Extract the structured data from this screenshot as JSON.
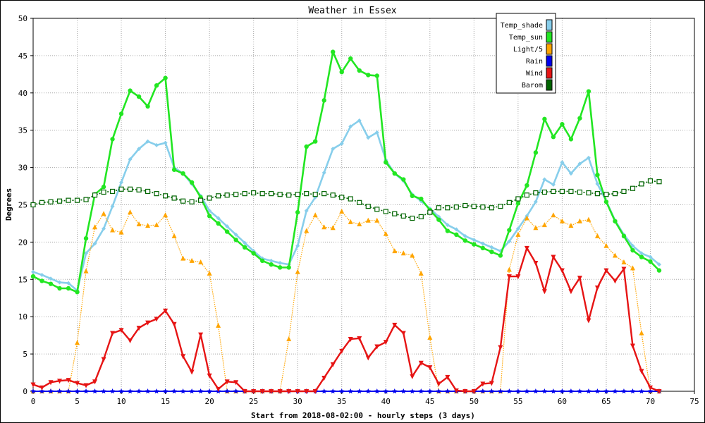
{
  "chart_data": {
    "type": "line",
    "title": "Weather in Essex",
    "xlabel": "Start from 2018-08-02:00 - hourly steps (3 days)",
    "ylabel": "Degrees",
    "xlim": [
      0,
      75
    ],
    "ylim": [
      0,
      50
    ],
    "xticks": [
      0,
      5,
      10,
      15,
      20,
      25,
      30,
      35,
      40,
      45,
      50,
      55,
      60,
      65,
      70,
      75
    ],
    "yticks": [
      0,
      5,
      10,
      15,
      20,
      25,
      30,
      35,
      40,
      45,
      50
    ],
    "grid": true,
    "legend_position": "top-right",
    "series": [
      {
        "name": "Temp_shade",
        "color": "#87ceeb",
        "marker": "diamond",
        "x": [
          0,
          1,
          2,
          3,
          4,
          5,
          6,
          7,
          8,
          9,
          10,
          11,
          12,
          13,
          14,
          15,
          16,
          17,
          18,
          19,
          20,
          21,
          22,
          23,
          24,
          25,
          26,
          27,
          28,
          29,
          30,
          31,
          32,
          33,
          34,
          35,
          36,
          37,
          38,
          39,
          40,
          41,
          42,
          43,
          44,
          45,
          46,
          47,
          48,
          49,
          50,
          51,
          52,
          53,
          54,
          55,
          56,
          57,
          58,
          59,
          60,
          61,
          62,
          63,
          64,
          65,
          66,
          67,
          68,
          69,
          70,
          71
        ],
        "values": [
          16.0,
          15.6,
          15.1,
          14.6,
          14.5,
          13.5,
          18.5,
          19.8,
          21.8,
          24.8,
          28.0,
          31.1,
          32.5,
          33.5,
          33.0,
          33.3,
          30.0,
          29.2,
          27.8,
          26.2,
          24.2,
          23.2,
          22.1,
          21.0,
          19.9,
          18.8,
          17.8,
          17.5,
          17.2,
          17.0,
          19.5,
          24.2,
          26.0,
          29.3,
          32.5,
          33.2,
          35.5,
          36.3,
          34.0,
          34.7,
          31.0,
          29.2,
          28.2,
          26.4,
          25.5,
          24.5,
          23.4,
          22.3,
          21.7,
          20.8,
          20.3,
          19.8,
          19.3,
          18.8,
          20.1,
          21.8,
          23.5,
          25.4,
          28.4,
          27.7,
          30.7,
          29.2,
          30.5,
          31.3,
          27.8,
          25.5,
          22.9,
          21.0,
          19.5,
          18.5,
          18.0,
          17.0
        ]
      },
      {
        "name": "Temp_sun",
        "color": "#22e622",
        "marker": "circle",
        "x": [
          0,
          1,
          2,
          3,
          4,
          5,
          6,
          7,
          8,
          9,
          10,
          11,
          12,
          13,
          14,
          15,
          16,
          17,
          18,
          19,
          20,
          21,
          22,
          23,
          24,
          25,
          26,
          27,
          28,
          29,
          30,
          31,
          32,
          33,
          34,
          35,
          36,
          37,
          38,
          39,
          40,
          41,
          42,
          43,
          44,
          45,
          46,
          47,
          48,
          49,
          50,
          51,
          52,
          53,
          54,
          55,
          56,
          57,
          58,
          59,
          60,
          61,
          62,
          63,
          64,
          65,
          66,
          67,
          68,
          69,
          70,
          71
        ],
        "values": [
          15.4,
          14.8,
          14.4,
          13.8,
          13.8,
          13.3,
          20.5,
          26.4,
          27.4,
          33.8,
          37.2,
          40.3,
          39.5,
          38.2,
          41.0,
          42.0,
          29.7,
          29.2,
          28.0,
          26.0,
          23.5,
          22.5,
          21.4,
          20.3,
          19.3,
          18.5,
          17.5,
          17.0,
          16.6,
          16.6,
          24.0,
          32.8,
          33.5,
          39.0,
          45.5,
          42.8,
          44.6,
          43.0,
          42.4,
          42.3,
          30.7,
          29.2,
          28.4,
          26.2,
          25.8,
          24.3,
          23.0,
          21.5,
          21.0,
          20.2,
          19.7,
          19.2,
          18.7,
          18.2,
          21.6,
          25.2,
          27.6,
          32.0,
          36.5,
          34.1,
          35.8,
          33.8,
          36.6,
          40.2,
          29.0,
          25.4,
          22.8,
          20.8,
          18.9,
          18.0,
          17.4,
          16.2
        ]
      },
      {
        "name": "Light/5",
        "color": "#ffa500",
        "marker": "triangle-up",
        "x": [
          0,
          1,
          2,
          3,
          4,
          5,
          6,
          7,
          8,
          9,
          10,
          11,
          12,
          13,
          14,
          15,
          16,
          17,
          18,
          19,
          20,
          21,
          22,
          23,
          24,
          25,
          26,
          27,
          28,
          29,
          30,
          31,
          32,
          33,
          34,
          35,
          36,
          37,
          38,
          39,
          40,
          41,
          42,
          43,
          44,
          45,
          46,
          47,
          48,
          49,
          50,
          51,
          52,
          53,
          54,
          55,
          56,
          57,
          58,
          59,
          60,
          61,
          62,
          63,
          64,
          65,
          66,
          67,
          68,
          69,
          70,
          71
        ],
        "values": [
          0,
          0,
          0,
          0,
          0,
          6.5,
          16.1,
          22.0,
          23.8,
          21.6,
          21.3,
          24.0,
          22.4,
          22.2,
          22.3,
          23.6,
          20.8,
          17.8,
          17.5,
          17.3,
          15.8,
          8.8,
          0,
          0,
          0,
          0,
          0,
          0,
          0,
          7.0,
          16.0,
          21.5,
          23.6,
          22.0,
          21.9,
          24.1,
          22.7,
          22.4,
          22.9,
          22.9,
          21.1,
          18.8,
          18.5,
          18.2,
          15.8,
          7.2,
          0,
          0,
          0,
          0,
          0,
          0,
          0,
          0,
          16.3,
          21.0,
          23.2,
          21.9,
          22.3,
          23.6,
          22.8,
          22.2,
          22.8,
          23.0,
          20.8,
          19.5,
          18.2,
          17.3,
          16.5,
          7.8,
          0,
          0
        ]
      },
      {
        "name": "Rain",
        "color": "#0000ee",
        "marker": "star",
        "x": [
          0,
          1,
          2,
          3,
          4,
          5,
          6,
          7,
          8,
          9,
          10,
          11,
          12,
          13,
          14,
          15,
          16,
          17,
          18,
          19,
          20,
          21,
          22,
          23,
          24,
          25,
          26,
          27,
          28,
          29,
          30,
          31,
          32,
          33,
          34,
          35,
          36,
          37,
          38,
          39,
          40,
          41,
          42,
          43,
          44,
          45,
          46,
          47,
          48,
          49,
          50,
          51,
          52,
          53,
          54,
          55,
          56,
          57,
          58,
          59,
          60,
          61,
          62,
          63,
          64,
          65,
          66,
          67,
          68,
          69,
          70,
          71
        ],
        "values": [
          0,
          0,
          0,
          0,
          0,
          0,
          0,
          0,
          0,
          0,
          0,
          0,
          0,
          0,
          0,
          0,
          0,
          0,
          0,
          0,
          0,
          0,
          0,
          0,
          0,
          0,
          0,
          0,
          0,
          0,
          0,
          0,
          0,
          0,
          0,
          0,
          0,
          0,
          0,
          0,
          0,
          0,
          0,
          0,
          0,
          0,
          0,
          0,
          0,
          0,
          0,
          0,
          0,
          0,
          0,
          0,
          0,
          0,
          0,
          0,
          0,
          0,
          0,
          0,
          0,
          0,
          0,
          0,
          0,
          0,
          0,
          0
        ]
      },
      {
        "name": "Wind",
        "color": "#e61414",
        "marker": "triangle-down",
        "x": [
          0,
          1,
          2,
          3,
          4,
          5,
          6,
          7,
          8,
          9,
          10,
          11,
          12,
          13,
          14,
          15,
          16,
          17,
          18,
          19,
          20,
          21,
          22,
          23,
          24,
          25,
          26,
          27,
          28,
          29,
          30,
          31,
          32,
          33,
          34,
          35,
          36,
          37,
          38,
          39,
          40,
          41,
          42,
          43,
          44,
          45,
          46,
          47,
          48,
          49,
          50,
          51,
          52,
          53,
          54,
          55,
          56,
          57,
          58,
          59,
          60,
          61,
          62,
          63,
          64,
          65,
          66,
          67,
          68,
          69,
          70,
          71
        ],
        "values": [
          0.9,
          0.5,
          1.2,
          1.4,
          1.5,
          1.1,
          0.8,
          1.3,
          4.3,
          7.8,
          8.2,
          6.8,
          8.5,
          9.2,
          9.7,
          10.8,
          9.0,
          4.7,
          2.6,
          7.6,
          2.1,
          0.3,
          1.3,
          1.2,
          0,
          0,
          0,
          0,
          0,
          0,
          0,
          0,
          0,
          1.8,
          3.6,
          5.4,
          7.0,
          7.1,
          4.5,
          6.0,
          6.6,
          8.9,
          7.8,
          2.0,
          3.8,
          3.2,
          1.0,
          1.9,
          0.1,
          0,
          0,
          1.0,
          1.1,
          5.9,
          15.4,
          15.4,
          19.2,
          17.2,
          13.4,
          18.0,
          16.2,
          13.4,
          15.2,
          9.5,
          13.9,
          16.2,
          14.8,
          16.4,
          6.1,
          2.7,
          0.5,
          0
        ]
      },
      {
        "name": "Barom",
        "color": "#006400",
        "marker": "square-open",
        "x": [
          0,
          1,
          2,
          3,
          4,
          5,
          6,
          7,
          8,
          9,
          10,
          11,
          12,
          13,
          14,
          15,
          16,
          17,
          18,
          19,
          20,
          21,
          22,
          23,
          24,
          25,
          26,
          27,
          28,
          29,
          30,
          31,
          32,
          33,
          34,
          35,
          36,
          37,
          38,
          39,
          40,
          41,
          42,
          43,
          44,
          45,
          46,
          47,
          48,
          49,
          50,
          51,
          52,
          53,
          54,
          55,
          56,
          57,
          58,
          59,
          60,
          61,
          62,
          63,
          64,
          65,
          66,
          67,
          68,
          69,
          70,
          71
        ],
        "values": [
          25.0,
          25.3,
          25.4,
          25.5,
          25.6,
          25.6,
          25.7,
          26.3,
          26.7,
          26.8,
          27.1,
          27.1,
          27.0,
          26.8,
          26.5,
          26.2,
          25.9,
          25.5,
          25.4,
          25.6,
          25.9,
          26.2,
          26.3,
          26.4,
          26.5,
          26.6,
          26.5,
          26.5,
          26.4,
          26.3,
          26.4,
          26.5,
          26.4,
          26.5,
          26.3,
          26.0,
          25.8,
          25.3,
          24.8,
          24.4,
          24.1,
          23.8,
          23.5,
          23.2,
          23.4,
          24.0,
          24.6,
          24.6,
          24.7,
          24.9,
          24.8,
          24.7,
          24.6,
          24.8,
          25.3,
          25.8,
          26.3,
          26.6,
          26.7,
          26.8,
          26.8,
          26.8,
          26.7,
          26.6,
          26.5,
          26.4,
          26.5,
          26.8,
          27.2,
          27.8,
          28.2,
          28.1
        ]
      }
    ]
  }
}
